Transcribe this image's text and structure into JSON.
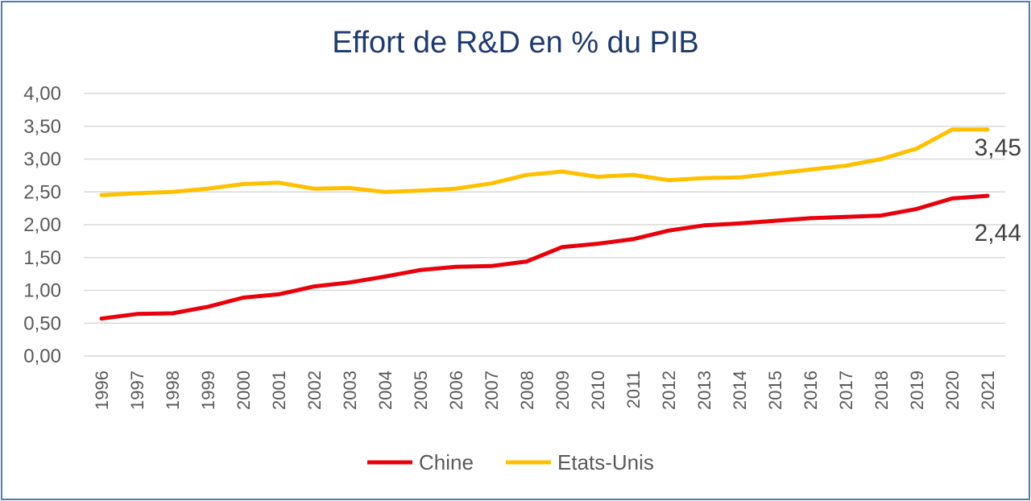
{
  "chart_data": {
    "type": "line",
    "title": "Effort de R&D en % du PIB",
    "xlabel": "",
    "ylabel": "",
    "ylim": [
      0,
      4
    ],
    "yticks": [
      "0,00",
      "0,50",
      "1,00",
      "1,50",
      "2,00",
      "2,50",
      "3,00",
      "3,50",
      "4,00"
    ],
    "grid": true,
    "legend_position": "bottom",
    "categories": [
      "1996",
      "1997",
      "1998",
      "1999",
      "2000",
      "2001",
      "2002",
      "2003",
      "2004",
      "2005",
      "2006",
      "2007",
      "2008",
      "2009",
      "2010",
      "2011",
      "2012",
      "2013",
      "2014",
      "2015",
      "2016",
      "2017",
      "2018",
      "2019",
      "2020",
      "2021"
    ],
    "series": [
      {
        "name": "Chine",
        "color": "#e8000b",
        "values": [
          0.57,
          0.64,
          0.65,
          0.75,
          0.89,
          0.94,
          1.06,
          1.12,
          1.21,
          1.31,
          1.36,
          1.37,
          1.44,
          1.66,
          1.71,
          1.78,
          1.91,
          1.99,
          2.02,
          2.06,
          2.1,
          2.12,
          2.14,
          2.24,
          2.4,
          2.44
        ],
        "end_label": "2,44"
      },
      {
        "name": "Etats-Unis",
        "color": "#ffc000",
        "values": [
          2.45,
          2.48,
          2.5,
          2.55,
          2.62,
          2.64,
          2.55,
          2.56,
          2.5,
          2.52,
          2.55,
          2.63,
          2.76,
          2.81,
          2.73,
          2.76,
          2.68,
          2.71,
          2.72,
          2.78,
          2.84,
          2.9,
          3.0,
          3.16,
          3.45,
          3.45
        ],
        "end_label": "3,45"
      }
    ]
  }
}
